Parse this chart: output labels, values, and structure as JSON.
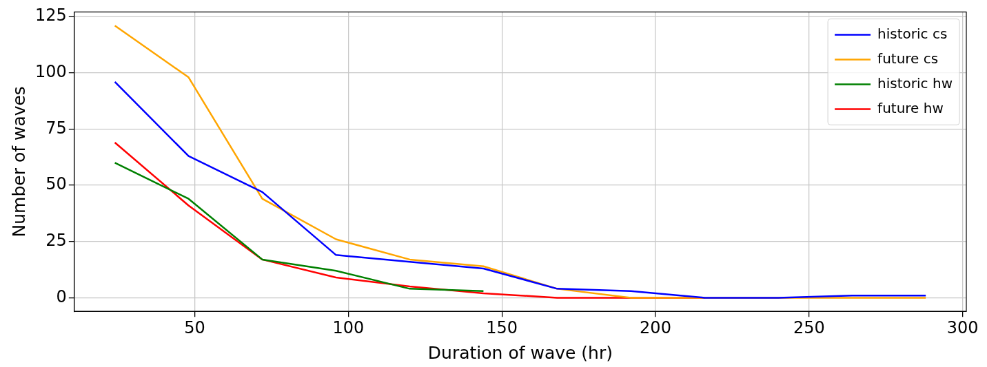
{
  "chart_data": {
    "type": "line",
    "xlabel": "Duration of wave (hr)",
    "ylabel": "Number of waves",
    "xlim": [
      10.8,
      301.2
    ],
    "xticks": [
      50,
      100,
      150,
      200,
      250,
      300
    ],
    "ylim": [
      -6.05,
      127.05
    ],
    "yticks": [
      0,
      25,
      50,
      75,
      100,
      125
    ],
    "grid": true,
    "legend": "top right",
    "marker": "none",
    "line_style": "solid",
    "series": [
      {
        "name": "historic cs",
        "color": "#0000ff",
        "x": [
          24,
          48,
          72,
          96,
          120,
          144,
          168,
          192,
          216,
          240,
          264,
          288
        ],
        "values": [
          96,
          63,
          47,
          19,
          16,
          13,
          4,
          3,
          0,
          0,
          1,
          1
        ]
      },
      {
        "name": "future cs",
        "color": "#ffa500",
        "x": [
          24,
          48,
          72,
          96,
          120,
          144,
          168,
          192,
          216,
          240,
          264,
          288
        ],
        "values": [
          121,
          98,
          44,
          26,
          17,
          14,
          4,
          0,
          0,
          0,
          0,
          0
        ]
      },
      {
        "name": "historic hw",
        "color": "#008000",
        "x": [
          24,
          48,
          72,
          96,
          120,
          144
        ],
        "values": [
          60,
          44,
          17,
          12,
          4,
          3
        ]
      },
      {
        "name": "future hw",
        "color": "#ff0000",
        "x": [
          24,
          48,
          72,
          96,
          120,
          144,
          168,
          192,
          216
        ],
        "values": [
          69,
          41,
          17,
          9,
          5,
          2,
          0,
          0,
          0
        ]
      }
    ]
  }
}
